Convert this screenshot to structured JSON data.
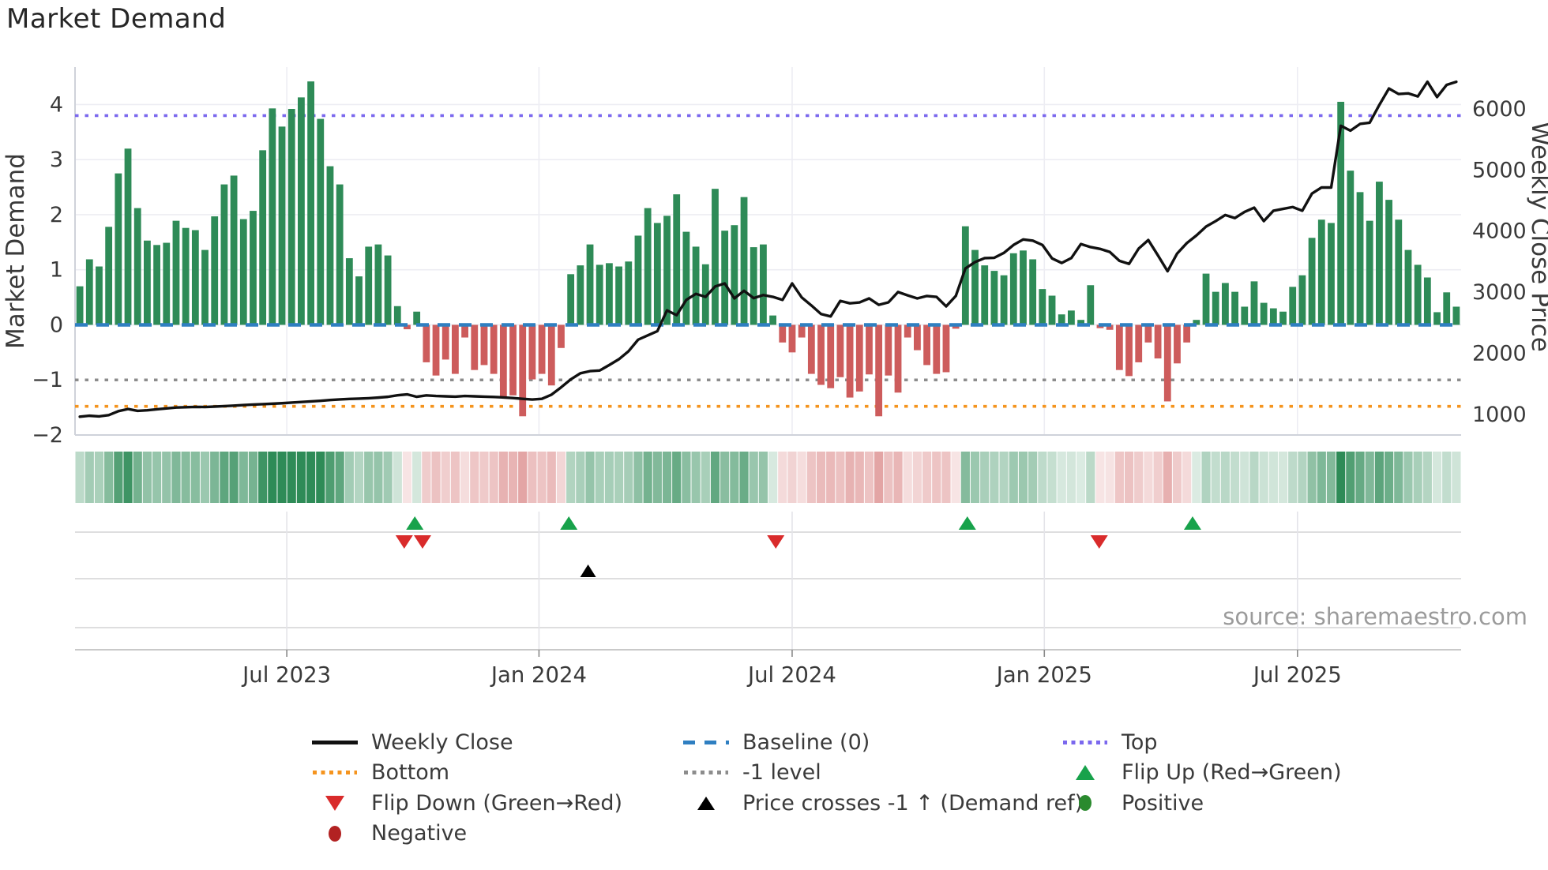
{
  "title": "Market Demand",
  "source": "source: sharemaestro.com",
  "axes": {
    "left_label": "Market Demand",
    "right_label": "Weekly Close Price",
    "left_ticks": [
      "4",
      "3",
      "2",
      "1",
      "0",
      "−1",
      "−2"
    ],
    "left_tick_values": [
      4,
      3,
      2,
      1,
      0,
      -1,
      -2
    ],
    "right_ticks": [
      "6000",
      "5000",
      "4000",
      "3000",
      "2000",
      "1000"
    ],
    "right_tick_values": [
      6000,
      5000,
      4000,
      3000,
      2000,
      1000
    ],
    "x_ticks": [
      "Jul 2023",
      "Jan 2024",
      "Jul 2024",
      "Jan 2025",
      "Jul 2025"
    ],
    "x_tick_weeks": [
      21.5,
      47.7,
      74.0,
      100.2,
      126.5
    ]
  },
  "chart_data": {
    "type": "bar+line",
    "x_unit": "week",
    "demand_ylim": [
      -2.0,
      4.68
    ],
    "price_ylim": [
      650,
      6670
    ],
    "grid": true,
    "levels": {
      "baseline": 0,
      "top": 3.8,
      "bottom": -1.48,
      "minus1": -1
    },
    "demand": [
      0.7,
      1.19,
      1.06,
      1.78,
      2.75,
      3.2,
      2.12,
      1.53,
      1.45,
      1.49,
      1.89,
      1.76,
      1.72,
      1.36,
      1.97,
      2.55,
      2.71,
      1.92,
      2.07,
      3.17,
      3.93,
      3.6,
      3.92,
      4.13,
      4.42,
      3.74,
      2.88,
      2.55,
      1.21,
      0.88,
      1.42,
      1.46,
      1.26,
      0.34,
      -0.08,
      0.24,
      -0.68,
      -0.92,
      -0.63,
      -0.89,
      -0.23,
      -0.82,
      -0.73,
      -0.89,
      -1.32,
      -1.28,
      -1.66,
      -0.99,
      -0.89,
      -1.1,
      -0.42,
      0.92,
      1.08,
      1.46,
      1.09,
      1.12,
      1.06,
      1.15,
      1.62,
      2.12,
      1.85,
      1.98,
      2.37,
      1.69,
      1.42,
      1.1,
      2.47,
      1.71,
      1.81,
      2.32,
      1.41,
      1.46,
      0.17,
      -0.32,
      -0.5,
      -0.23,
      -0.89,
      -1.09,
      -1.15,
      -0.95,
      -1.32,
      -1.21,
      -0.9,
      -1.66,
      -0.92,
      -1.23,
      -0.23,
      -0.46,
      -0.73,
      -0.89,
      -0.86,
      -0.07,
      1.79,
      1.36,
      1.08,
      0.98,
      0.9,
      1.3,
      1.35,
      1.19,
      0.65,
      0.53,
      0.19,
      0.26,
      0.09,
      0.72,
      -0.06,
      -0.09,
      -0.82,
      -0.93,
      -0.68,
      -0.32,
      -0.61,
      -1.39,
      -0.7,
      -0.32,
      0.09,
      0.93,
      0.6,
      0.76,
      0.6,
      0.33,
      0.79,
      0.4,
      0.3,
      0.24,
      0.69,
      0.9,
      1.58,
      1.91,
      1.85,
      4.05,
      2.8,
      2.41,
      1.89,
      2.6,
      2.27,
      1.91,
      1.36,
      1.09,
      0.86,
      0.23,
      0.59,
      0.33
    ],
    "price": [
      950,
      965,
      955,
      975,
      1040,
      1075,
      1045,
      1055,
      1070,
      1085,
      1100,
      1105,
      1110,
      1108,
      1115,
      1122,
      1130,
      1140,
      1148,
      1155,
      1162,
      1170,
      1180,
      1190,
      1200,
      1210,
      1222,
      1232,
      1240,
      1245,
      1252,
      1262,
      1275,
      1300,
      1315,
      1275,
      1298,
      1288,
      1283,
      1278,
      1288,
      1283,
      1278,
      1272,
      1265,
      1255,
      1242,
      1230,
      1242,
      1310,
      1430,
      1560,
      1660,
      1695,
      1705,
      1795,
      1890,
      2020,
      2210,
      2280,
      2350,
      2690,
      2610,
      2860,
      2960,
      2910,
      3080,
      3130,
      2885,
      3010,
      2890,
      2940,
      2910,
      2860,
      3130,
      2900,
      2770,
      2630,
      2590,
      2845,
      2805,
      2820,
      2885,
      2780,
      2820,
      2990,
      2935,
      2885,
      2925,
      2910,
      2755,
      2925,
      3375,
      3480,
      3545,
      3550,
      3630,
      3760,
      3850,
      3830,
      3760,
      3540,
      3465,
      3545,
      3775,
      3725,
      3695,
      3645,
      3500,
      3450,
      3700,
      3840,
      3590,
      3330,
      3620,
      3790,
      3915,
      4060,
      4150,
      4250,
      4200,
      4300,
      4370,
      4150,
      4320,
      4350,
      4380,
      4320,
      4600,
      4700,
      4700,
      5710,
      5630,
      5740,
      5760,
      6050,
      6320,
      6230,
      6240,
      6190,
      6430,
      6180,
      6380,
      6430
    ],
    "markers": {
      "flip_up_weeks": [
        34.8,
        50.8,
        92.2,
        115.6
      ],
      "flip_down_weeks": [
        33.7,
        35.6,
        72.3,
        105.9
      ],
      "price_cross_weeks": [
        52.8
      ]
    },
    "heatmap": "derived from demand sign and magnitude"
  },
  "colors": {
    "positive_bar": "#2e8b57",
    "negative_bar": "#cd5c5c",
    "baseline": "#2f7fc1",
    "top_line": "#7b68ee",
    "bottom_line": "#f5941e",
    "minus1_line": "#8c8c8c",
    "price_line": "#111111",
    "flip_up": "#18a24b",
    "flip_down": "#d92b2b",
    "price_cross": "#000000",
    "positive_dot": "#2a8a2e",
    "negative_dot": "#b22222"
  },
  "legend": {
    "items": [
      {
        "label": "Weekly Close"
      },
      {
        "label": "Baseline (0)"
      },
      {
        "label": "Top"
      },
      {
        "label": "Bottom"
      },
      {
        "label": "-1 level"
      },
      {
        "label": "Flip Up (Red→Green)"
      },
      {
        "label": "Flip Down (Green→Red)"
      },
      {
        "label": "Price crosses -1 ↑ (Demand ref)"
      },
      {
        "label": "Positive"
      },
      {
        "label": "Negative"
      }
    ]
  }
}
